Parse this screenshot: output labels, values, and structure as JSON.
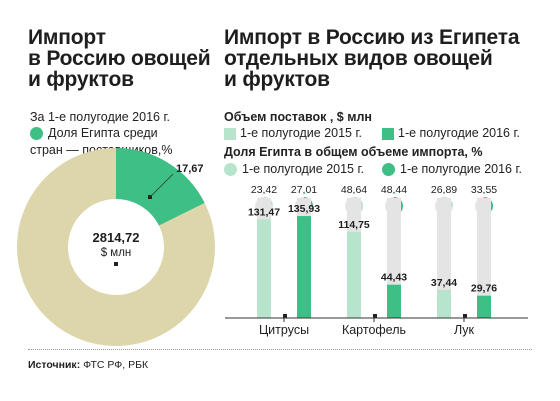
{
  "left": {
    "title": "Импорт\nв Россию овощей\nи фруктов",
    "subtitle": "За 1-е полугодие 2016 г.",
    "legend_line1": "Доля Египта среди",
    "legend_line2": "стран — поставщиков,%",
    "egypt_share_label": "17,67",
    "center_value": "2814,72",
    "center_unit": "$ млн"
  },
  "right": {
    "title": "Импорт в Россию из Египета\nотдельных видов овощей\nи фруктов",
    "volume_header": "Объем поставок , $ млн",
    "legend_2015": "1-е полугодие 2015 г.",
    "legend_2016": "1-е полугодие 2016 г.",
    "share_header": "Доля Египта в общем объеме импорта, %",
    "legend_share_2015": "1-е полугодие 2015 г.",
    "legend_share_2016": "1-е полугодие 2016 г."
  },
  "source": {
    "label": "Источник:",
    "text": " ФТС РФ, РБК"
  },
  "colors": {
    "green_dark": "#3dbf86",
    "green_light": "#b7e4cd",
    "beige": "#ddd6ab",
    "gray_bar": "#e4e4e4"
  },
  "chart_data": [
    {
      "type": "pie",
      "subtitle": "За 1-е полугодие 2016 г.",
      "total": 2814.72,
      "total_unit": "$ млн",
      "slices": [
        {
          "name": "Доля Египта среди стран — поставщиков,%",
          "value": 17.67,
          "label": "17,67"
        },
        {
          "name": "",
          "value": 82.33,
          "label": ""
        }
      ]
    },
    {
      "type": "bar",
      "title": "Объем поставок , $ млн",
      "categories": [
        "Цитрусы",
        "Картофель",
        "Лук"
      ],
      "series": [
        {
          "name": "1-е полугодие 2015 г.",
          "values": [
            131.47,
            114.75,
            37.44
          ],
          "labels": [
            "131,47",
            "114,75",
            "37,44"
          ]
        },
        {
          "name": "1-е полугодие 2016 г.",
          "values": [
            135.93,
            44.43,
            29.76
          ],
          "labels": [
            "135,93",
            "44,43",
            "29,76"
          ]
        }
      ],
      "ylim": [
        0,
        160
      ]
    },
    {
      "type": "pie",
      "title": "Доля Египта в общем объеме импорта, %",
      "categories": [
        "Цитрусы",
        "Картофель",
        "Лук"
      ],
      "series": [
        {
          "name": "1-е полугодие 2015 г.",
          "values": [
            23.42,
            48.64,
            26.89
          ],
          "labels": [
            "23,42",
            "48,64",
            "26,89"
          ]
        },
        {
          "name": "1-е полугодие 2016 г.",
          "values": [
            27.01,
            48.44,
            33.55
          ],
          "labels": [
            "27,01",
            "48,44",
            "33,55"
          ]
        }
      ]
    }
  ]
}
